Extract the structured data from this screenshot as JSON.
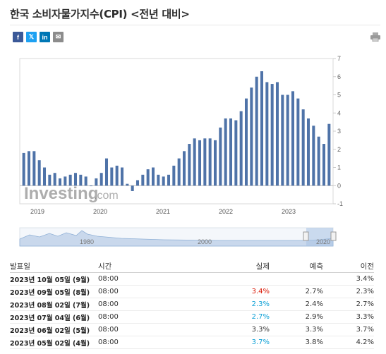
{
  "page": {
    "title": "한국 소비자물가지수(CPI) <전년 대비>"
  },
  "share": {
    "facebook_glyph": "f",
    "twitter_glyph": "𝕏",
    "linkedin_glyph": "in",
    "email_glyph": "✉"
  },
  "chart_data": {
    "type": "bar",
    "x_tick_labels": [
      "2019",
      "2020",
      "2021",
      "2022",
      "2023"
    ],
    "y_ticks": [
      7,
      6,
      5,
      4,
      3,
      2,
      1,
      0,
      -1
    ],
    "ylim": [
      -1,
      7
    ],
    "watermark": "Investing",
    "watermark_suffix": ".com",
    "navigator_labels": [
      "1980",
      "2000",
      "2020"
    ],
    "bar_color": "#4f73a8",
    "values": [
      1.8,
      1.9,
      1.9,
      1.4,
      1.0,
      0.6,
      0.7,
      0.4,
      0.5,
      0.6,
      0.7,
      0.6,
      0.5,
      0.0,
      0.4,
      0.7,
      1.5,
      1.0,
      1.1,
      1.0,
      0.1,
      -0.3,
      0.3,
      0.6,
      0.9,
      1.0,
      0.6,
      0.5,
      0.6,
      1.1,
      1.5,
      1.9,
      2.3,
      2.6,
      2.5,
      2.6,
      2.6,
      2.5,
      3.2,
      3.7,
      3.7,
      3.6,
      4.1,
      4.8,
      5.4,
      6.0,
      6.3,
      5.7,
      5.6,
      5.7,
      5.0,
      5.0,
      5.2,
      4.8,
      4.2,
      3.7,
      3.3,
      2.7,
      2.3,
      3.4
    ]
  },
  "table": {
    "headers": {
      "release": "발표일",
      "time": "시간",
      "actual": "실제",
      "forecast": "예측",
      "previous": "이전"
    },
    "rows": [
      {
        "release": "2023년 10월 05일 (9월)",
        "time": "08:00",
        "actual": "",
        "actual_color": "",
        "forecast": "",
        "previous": "3.4%"
      },
      {
        "release": "2023년 09월 05일 (8월)",
        "time": "08:00",
        "actual": "3.4%",
        "actual_color": "neg",
        "forecast": "2.7%",
        "previous": "2.3%"
      },
      {
        "release": "2023년 08월 02일 (7월)",
        "time": "08:00",
        "actual": "2.3%",
        "actual_color": "pos",
        "forecast": "2.4%",
        "previous": "2.7%"
      },
      {
        "release": "2023년 07월 04일 (6월)",
        "time": "08:00",
        "actual": "2.7%",
        "actual_color": "pos",
        "forecast": "2.9%",
        "previous": "3.3%"
      },
      {
        "release": "2023년 06월 02일 (5월)",
        "time": "08:00",
        "actual": "3.3%",
        "actual_color": "",
        "forecast": "3.3%",
        "previous": "3.7%"
      },
      {
        "release": "2023년 05월 02일 (4월)",
        "time": "08:00",
        "actual": "3.7%",
        "actual_color": "pos",
        "forecast": "3.8%",
        "previous": "4.2%"
      }
    ]
  }
}
